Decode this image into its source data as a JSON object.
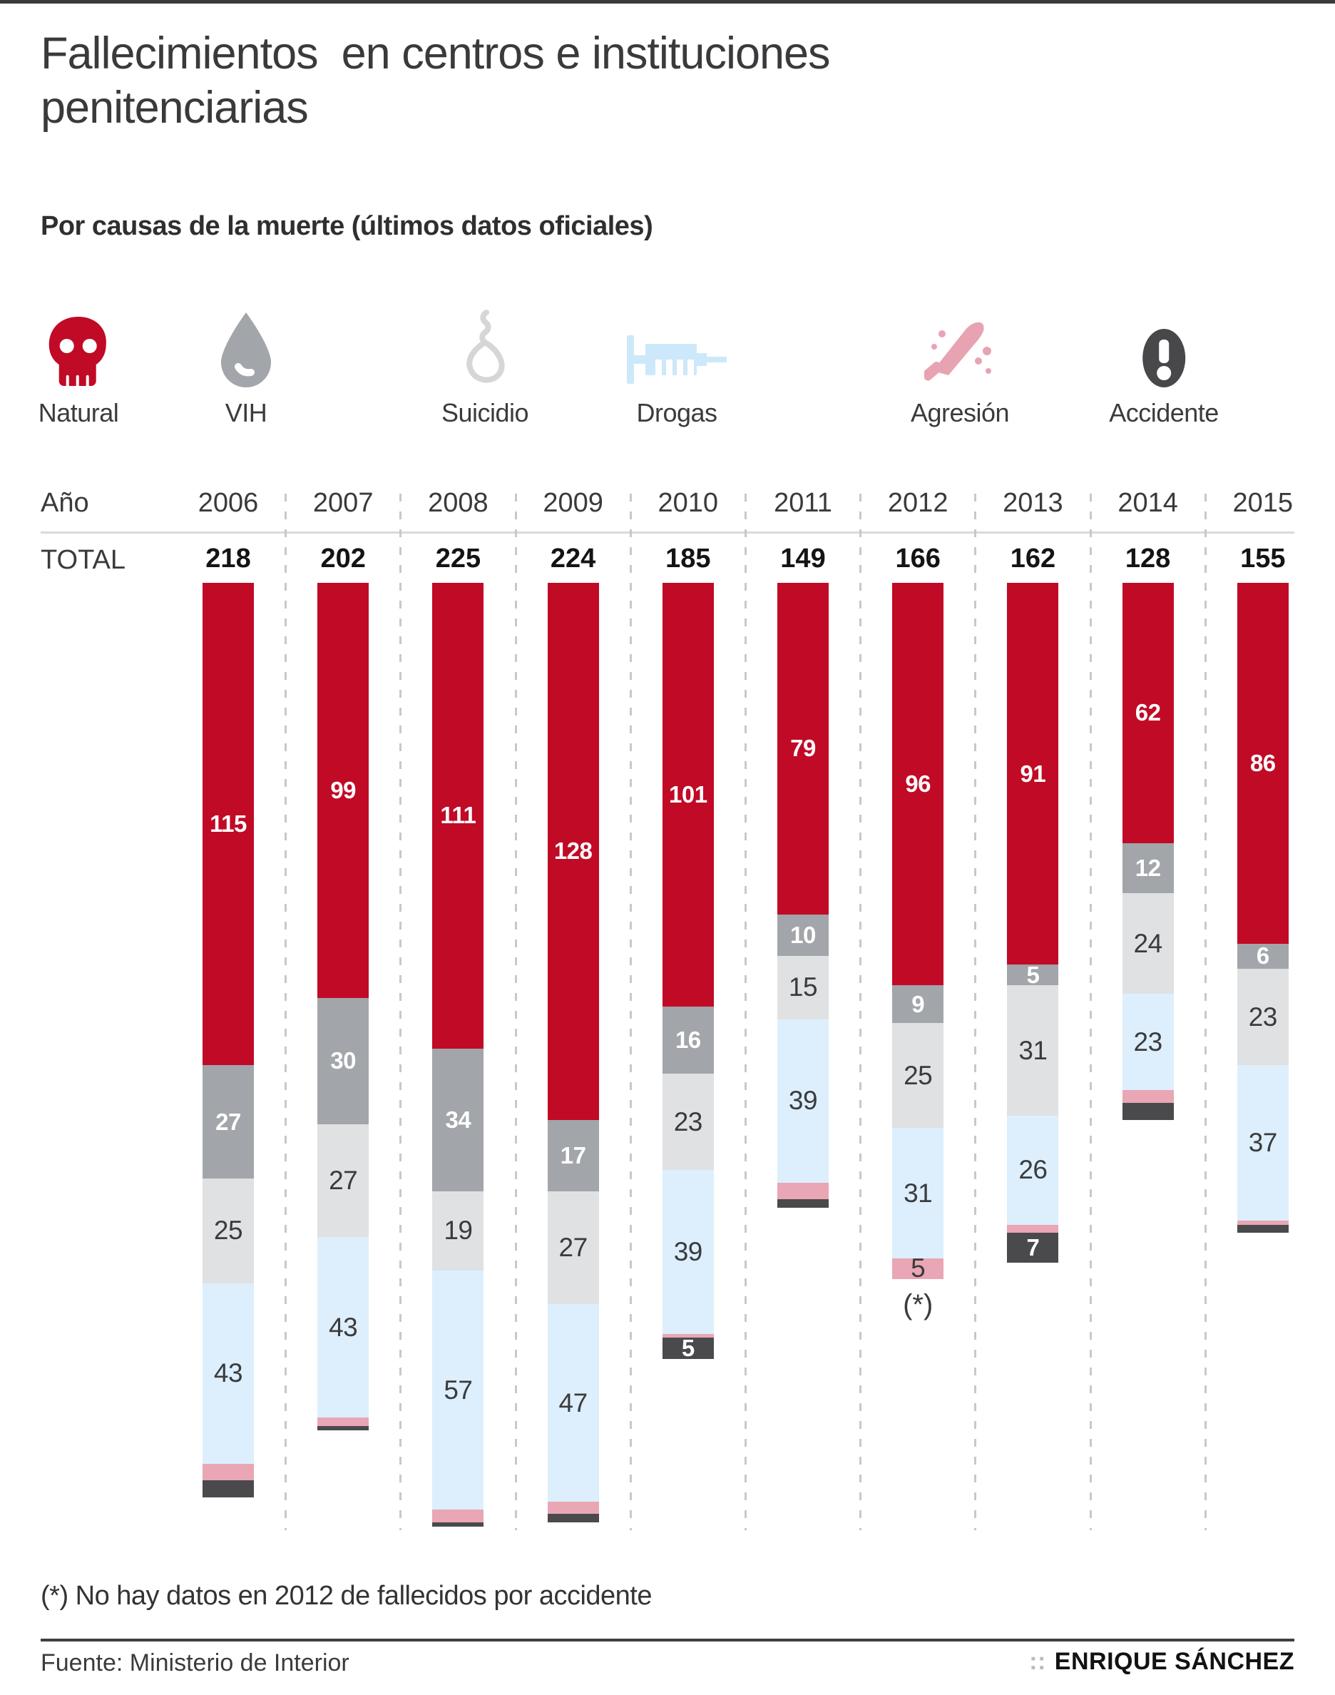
{
  "page": {
    "title": "Fallecimientos  en centros e instituciones penitenciarias",
    "subtitle": "Por causas de la muerte (últimos datos oficiales)",
    "year_label": "Año",
    "total_label": "TOTAL",
    "footnote": "(*) No hay datos en 2012 de fallecidos por accidente",
    "source": "Fuente: Ministerio de Interior",
    "credit_mark": "::",
    "credit": "ENRIQUE SÁNCHEZ"
  },
  "legend": [
    {
      "label": "Natural",
      "icon": "skull-icon",
      "color": "#c00a26"
    },
    {
      "label": "VIH",
      "icon": "drop-icon",
      "color": "#a2a5a9"
    },
    {
      "label": "Suicidio",
      "icon": "noose-icon",
      "color": "#d5d6d8"
    },
    {
      "label": "Drogas",
      "icon": "syringe-icon",
      "color": "#cde8fa"
    },
    {
      "label": "Agresión",
      "icon": "knife-icon",
      "color": "#e8a3b2"
    },
    {
      "label": "Accidente",
      "icon": "exclamation-icon",
      "color": "#48484a"
    }
  ],
  "chart_data": {
    "type": "bar",
    "stacked": true,
    "orientation": "vertical-hanging",
    "title": "Fallecimientos en centros e instituciones penitenciarias",
    "subtitle": "Por causas de la muerte (últimos datos oficiales)",
    "categories": [
      "2006",
      "2007",
      "2008",
      "2009",
      "2010",
      "2011",
      "2012",
      "2013",
      "2014",
      "2015"
    ],
    "totals": [
      218,
      202,
      225,
      224,
      185,
      149,
      166,
      162,
      128,
      155
    ],
    "series": [
      {
        "name": "Natural",
        "key": "natural",
        "color": "#c00a26",
        "label_style": "light",
        "values": [
          115,
          99,
          111,
          128,
          101,
          79,
          96,
          91,
          62,
          86
        ],
        "show_labels": [
          true,
          true,
          true,
          true,
          true,
          true,
          true,
          true,
          true,
          true
        ]
      },
      {
        "name": "VIH",
        "key": "vih",
        "color": "#a2a5a9",
        "label_style": "light",
        "values": [
          27,
          30,
          34,
          17,
          16,
          10,
          9,
          5,
          12,
          6
        ],
        "show_labels": [
          true,
          true,
          true,
          true,
          true,
          true,
          true,
          true,
          true,
          true
        ]
      },
      {
        "name": "Suicidio",
        "key": "suicidio",
        "color": "#e0e1e3",
        "label_style": "dark",
        "values": [
          25,
          27,
          19,
          27,
          23,
          15,
          25,
          31,
          24,
          23
        ],
        "show_labels": [
          true,
          true,
          true,
          true,
          true,
          true,
          true,
          true,
          true,
          true
        ]
      },
      {
        "name": "Drogas",
        "key": "drogas",
        "color": "#ddeffc",
        "label_style": "dark",
        "values": [
          43,
          43,
          57,
          47,
          39,
          39,
          31,
          26,
          23,
          37
        ],
        "show_labels": [
          true,
          true,
          true,
          true,
          true,
          true,
          true,
          true,
          true,
          true
        ]
      },
      {
        "name": "Agresión",
        "key": "agresion",
        "color": "#e9a6b4",
        "label_style": "dark",
        "values": [
          4,
          2,
          3,
          3,
          1,
          4,
          5,
          2,
          3,
          1
        ],
        "show_labels": [
          false,
          false,
          false,
          false,
          false,
          false,
          true,
          false,
          false,
          false
        ]
      },
      {
        "name": "Accidente",
        "key": "accidente",
        "color": "#4a4a4c",
        "label_style": "light",
        "values": [
          4,
          1,
          1,
          2,
          5,
          2,
          0,
          7,
          4,
          2
        ],
        "show_labels": [
          false,
          false,
          false,
          false,
          true,
          false,
          false,
          true,
          false,
          false
        ]
      }
    ],
    "annotation": {
      "category": "2012",
      "text": "(*)"
    },
    "note": "(*) No hay datos en 2012 de fallecidos por accidente",
    "legend_position": "top",
    "grid": "dashed-column-separators"
  }
}
